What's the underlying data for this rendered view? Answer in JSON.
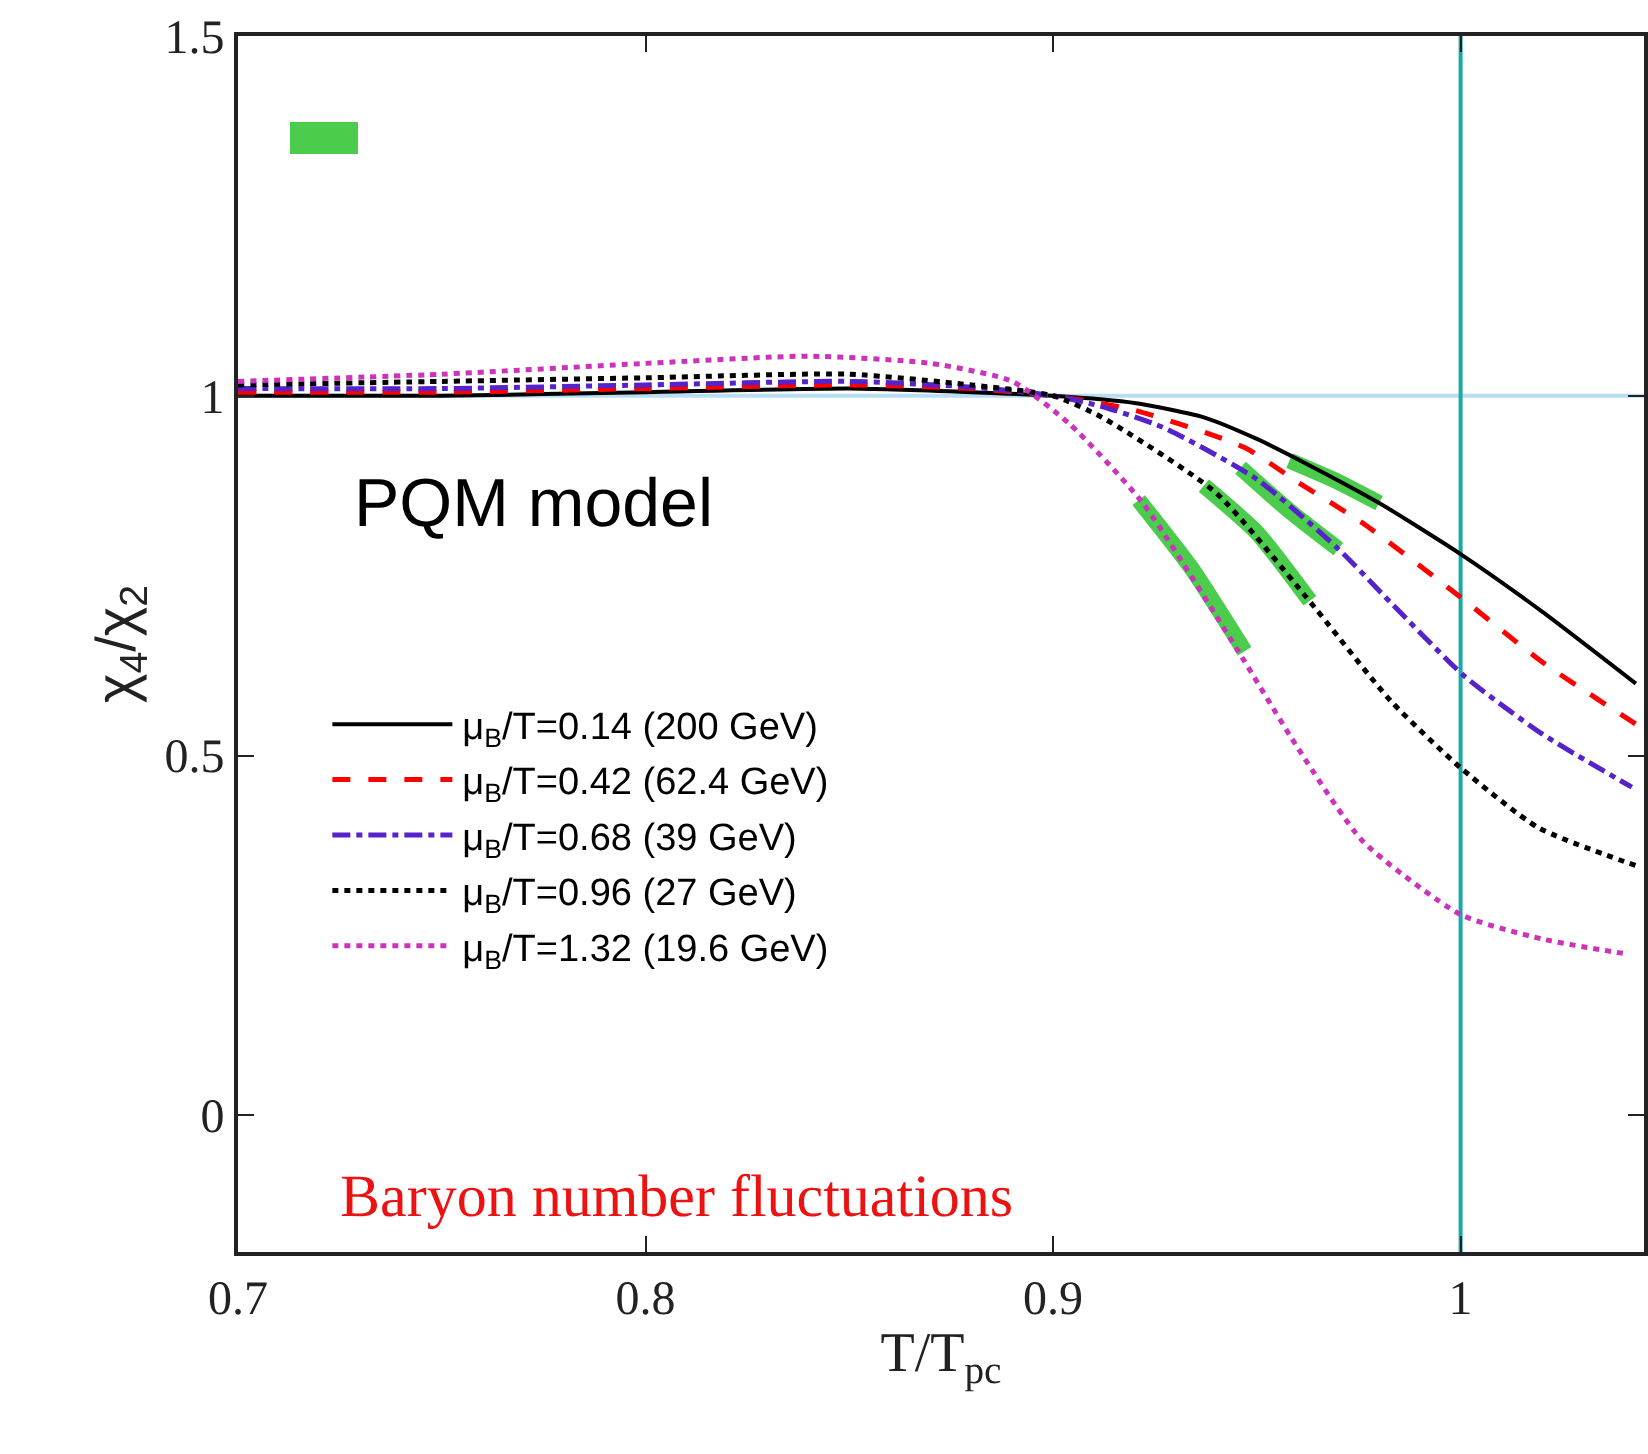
{
  "chart_data": {
    "type": "line",
    "xlabel": "T/T$_{pc}$",
    "ylabel": "χ$_{4}$/χ$_{2}$",
    "xlim": [
      0.7,
      1.045
    ],
    "xticks": [
      0.7,
      0.8,
      0.9,
      1
    ],
    "ylim": [
      -0.19,
      1.5
    ],
    "yticks": [
      0,
      0.5,
      1,
      1.5
    ],
    "grid": false,
    "legend": "left",
    "series": [
      {
        "name": "μ$_{B}$/T=0.14 (200 GeV)",
        "color": "#000000",
        "line_style": "solid",
        "x": [
          0.7,
          0.75,
          0.8,
          0.85,
          0.88,
          0.9,
          0.92,
          0.937,
          0.95,
          0.962,
          0.98,
          1.0,
          1.02,
          1.043
        ],
        "values": [
          1.0,
          1.0,
          1.005,
          1.01,
          1.005,
          1.0,
          0.99,
          0.97,
          0.94,
          0.906,
          0.851,
          0.78,
          0.7,
          0.6
        ]
      },
      {
        "name": "μ$_{B}$/T=0.42 (62.4 GeV)",
        "color": "#ff0000",
        "line_style": "dashed",
        "x": [
          0.7,
          0.75,
          0.8,
          0.85,
          0.88,
          0.9,
          0.92,
          0.947,
          0.96,
          0.976,
          1.0,
          1.02,
          1.044
        ],
        "values": [
          1.005,
          1.005,
          1.01,
          1.015,
          1.01,
          1.0,
          0.98,
          0.928,
          0.88,
          0.823,
          0.72,
          0.63,
          0.54
        ]
      },
      {
        "name": "μ$_{B}$/T=0.68 (39 GeV)",
        "color": "#5522cc",
        "line_style": "dashdot",
        "x": [
          0.7,
          0.75,
          0.8,
          0.85,
          0.88,
          0.9,
          0.912,
          0.927,
          0.95,
          0.97,
          0.985,
          1.001,
          1.02,
          1.042
        ],
        "values": [
          1.01,
          1.01,
          1.015,
          1.02,
          1.012,
          1.0,
          0.985,
          0.956,
          0.884,
          0.787,
          0.7,
          0.61,
          0.53,
          0.456
        ]
      },
      {
        "name": "μ$_{B}$/T=0.96 (27 GeV)",
        "color": "#000000",
        "line_style": "dotted",
        "x": [
          0.7,
          0.75,
          0.8,
          0.85,
          0.88,
          0.9,
          0.912,
          0.94,
          0.962,
          0.983,
          1.0,
          1.019,
          1.044
        ],
        "values": [
          1.015,
          1.02,
          1.025,
          1.03,
          1.015,
          1.0,
          0.97,
          0.865,
          0.721,
          0.575,
          0.483,
          0.4,
          0.345
        ]
      },
      {
        "name": "μ$_{B}$/T=1.32 (19.6 GeV)",
        "color": "#cc33bb",
        "line_style": "dotted",
        "x": [
          0.7,
          0.75,
          0.8,
          0.84,
          0.87,
          0.89,
          0.904,
          0.922,
          0.945,
          0.96,
          0.976,
          1.0,
          1.02,
          1.041
        ],
        "values": [
          1.02,
          1.03,
          1.045,
          1.055,
          1.045,
          1.02,
          0.961,
          0.851,
          0.649,
          0.511,
          0.381,
          0.279,
          0.245,
          0.224
        ]
      },
      {
        "color": "#4ccc4c",
        "line_style": "solid",
        "x": [
          0.921,
          0.934,
          0.947
        ],
        "values": [
          0.855,
          0.76,
          0.645
        ]
      },
      {
        "color": "#4ccc4c",
        "line_style": "solid",
        "x": [
          0.937,
          0.95,
          0.963
        ],
        "values": [
          0.875,
          0.81,
          0.715
        ]
      },
      {
        "color": "#4ccc4c",
        "line_style": "solid",
        "x": [
          0.946,
          0.958,
          0.97
        ],
        "values": [
          0.9,
          0.84,
          0.787
        ]
      },
      {
        "color": "#4ccc4c",
        "line_style": "solid",
        "x": [
          0.958,
          0.969,
          0.98
        ],
        "values": [
          0.91,
          0.883,
          0.851
        ]
      }
    ],
    "ref_lines": [
      {
        "axis": "y",
        "value": 1,
        "color": "#b8def5"
      },
      {
        "axis": "x",
        "value": 1,
        "color": "#1aa8a8"
      }
    ],
    "annotations": [
      "PQM model",
      "Baryon number fluctuations"
    ]
  }
}
